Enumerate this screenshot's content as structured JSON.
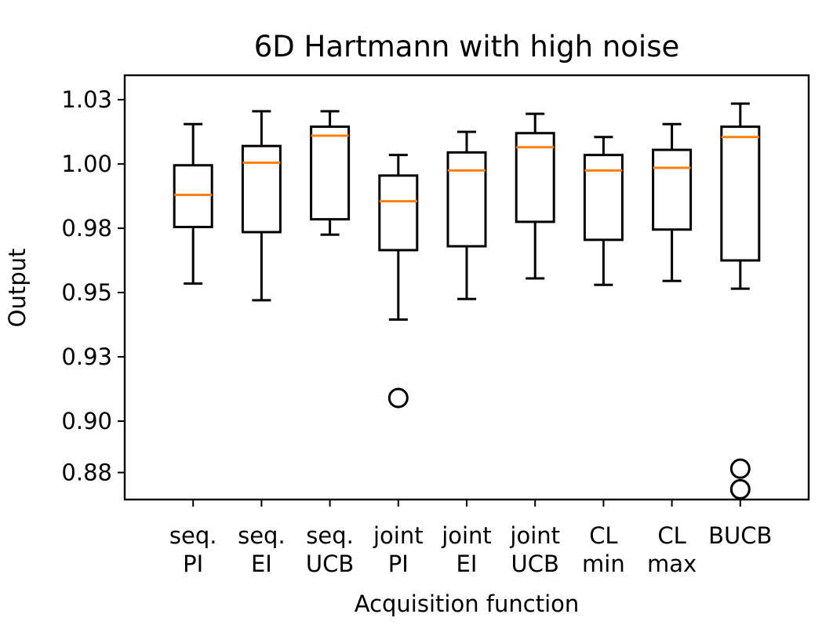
{
  "chart_data": {
    "type": "boxplot",
    "title": "6D Hartmann with high noise",
    "xlabel": "Acquisition function",
    "ylabel": "Output",
    "ylim": [
      0.8695,
      1.0345
    ],
    "yticks": [
      {
        "value": 0.88,
        "label": "0.88"
      },
      {
        "value": 0.9,
        "label": "0.90"
      },
      {
        "value": 0.925,
        "label": "0.93"
      },
      {
        "value": 0.95,
        "label": "0.95"
      },
      {
        "value": 0.975,
        "label": "0.98"
      },
      {
        "value": 1.0,
        "label": "1.00"
      },
      {
        "value": 1.025,
        "label": "1.03"
      }
    ],
    "categories": [
      [
        "seq.",
        "PI"
      ],
      [
        "seq.",
        "EI"
      ],
      [
        "seq.",
        "UCB"
      ],
      [
        "joint",
        "PI"
      ],
      [
        "joint",
        "EI"
      ],
      [
        "joint",
        "UCB"
      ],
      [
        "CL",
        "min"
      ],
      [
        "CL",
        "max"
      ],
      [
        "BUCB"
      ]
    ],
    "boxes": [
      {
        "whisker_low": 0.9535,
        "q1": 0.9755,
        "median": 0.988,
        "q3": 0.9995,
        "whisker_high": 1.0155,
        "outliers": []
      },
      {
        "whisker_low": 0.947,
        "q1": 0.9735,
        "median": 1.0005,
        "q3": 1.007,
        "whisker_high": 1.0205,
        "outliers": []
      },
      {
        "whisker_low": 0.9725,
        "q1": 0.9785,
        "median": 1.011,
        "q3": 1.0145,
        "whisker_high": 1.0205,
        "outliers": []
      },
      {
        "whisker_low": 0.9395,
        "q1": 0.9665,
        "median": 0.9855,
        "q3": 0.9955,
        "whisker_high": 1.0035,
        "outliers": [
          0.909
        ]
      },
      {
        "whisker_low": 0.9475,
        "q1": 0.968,
        "median": 0.9975,
        "q3": 1.0045,
        "whisker_high": 1.0125,
        "outliers": []
      },
      {
        "whisker_low": 0.9555,
        "q1": 0.9775,
        "median": 1.0065,
        "q3": 1.012,
        "whisker_high": 1.0195,
        "outliers": []
      },
      {
        "whisker_low": 0.953,
        "q1": 0.9705,
        "median": 0.9975,
        "q3": 1.0035,
        "whisker_high": 1.0105,
        "outliers": []
      },
      {
        "whisker_low": 0.9545,
        "q1": 0.9745,
        "median": 0.9985,
        "q3": 1.0055,
        "whisker_high": 1.0155,
        "outliers": []
      },
      {
        "whisker_low": 0.9515,
        "q1": 0.9625,
        "median": 1.0105,
        "q3": 1.0145,
        "whisker_high": 1.0235,
        "outliers": [
          0.8815,
          0.8735
        ]
      }
    ],
    "colors": {
      "box": "#000000",
      "median": "#ff7f0e"
    },
    "grid": false,
    "legend": "none"
  }
}
